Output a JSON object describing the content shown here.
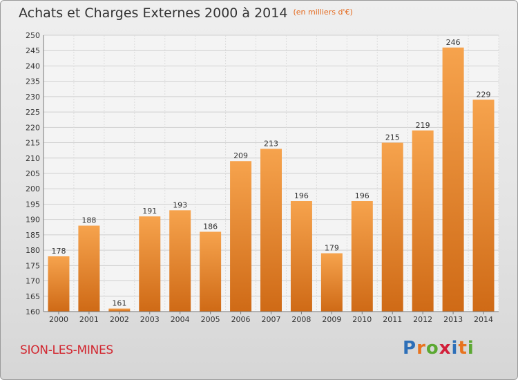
{
  "header": {
    "title": "Achats et Charges Externes 2000 à 2014",
    "unit": "(en milliers d'€)"
  },
  "footer": {
    "commune": "SION-LES-MINES"
  },
  "brand": {
    "letters": [
      "P",
      "r",
      "o",
      "x",
      "i",
      "t",
      "i"
    ],
    "colors": [
      "#2d6fb8",
      "#e8731e",
      "#5ba832",
      "#d21f3a",
      "#2d6fb8",
      "#e8731e",
      "#5ba832"
    ]
  },
  "colors": {
    "bar_top": "#f6a34d",
    "bar_bottom": "#cf6a16",
    "label": "#333333"
  },
  "chart_data": {
    "type": "bar",
    "title": "Achats et Charges Externes 2000 à 2014",
    "subtitle": "(en milliers d'€)",
    "categories": [
      "2000",
      "2001",
      "2002",
      "2003",
      "2004",
      "2005",
      "2006",
      "2007",
      "2008",
      "2009",
      "2010",
      "2011",
      "2012",
      "2013",
      "2014"
    ],
    "values": [
      178,
      188,
      161,
      191,
      193,
      186,
      209,
      213,
      196,
      179,
      196,
      215,
      219,
      246,
      229
    ],
    "ylim": [
      160,
      250
    ],
    "ytick_step": 5,
    "grid": true,
    "xlabel": "",
    "ylabel": ""
  }
}
